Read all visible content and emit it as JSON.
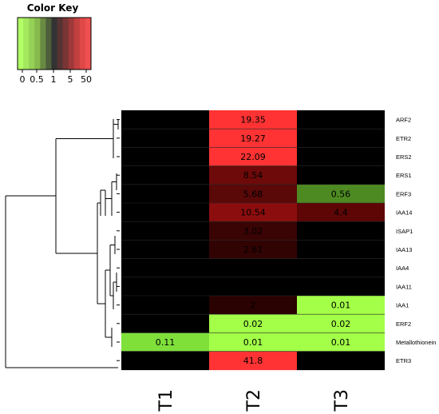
{
  "chart_data": {
    "type": "heatmap",
    "color_key": {
      "title": "Color Key",
      "tick_labels": [
        "0",
        "0.5",
        "1",
        "5",
        "50"
      ],
      "colors": [
        "#b3ff66",
        "#a4e85e",
        "#95d156",
        "#86ba4e",
        "#6a8a43",
        "#4e5f3b",
        "#333333",
        "#553333",
        "#7a3535",
        "#9e3a3a",
        "#c24040",
        "#e04848",
        "#f05050"
      ]
    },
    "columns": [
      "T1",
      "T2",
      "T3"
    ],
    "rows": [
      "ARF2",
      "ETR2",
      "ERS2",
      "ERS1",
      "ERF3",
      "IAA14",
      "ISAP1",
      "IAA13",
      "IAA4",
      "IAA11",
      "IAA1",
      "ERF2",
      "Metallothionein",
      "ETR3"
    ],
    "cells": [
      [
        {
          "color": "#000000",
          "label": ""
        },
        {
          "color": "#ff3333",
          "label": "19.35"
        },
        {
          "color": "#000000",
          "label": ""
        }
      ],
      [
        {
          "color": "#000000",
          "label": ""
        },
        {
          "color": "#ff3333",
          "label": "19.27"
        },
        {
          "color": "#000000",
          "label": ""
        }
      ],
      [
        {
          "color": "#000000",
          "label": ""
        },
        {
          "color": "#ff3333",
          "label": "22.09"
        },
        {
          "color": "#000000",
          "label": ""
        }
      ],
      [
        {
          "color": "#000000",
          "label": ""
        },
        {
          "color": "#6e0a0a",
          "label": "8.54"
        },
        {
          "color": "#000000",
          "label": ""
        }
      ],
      [
        {
          "color": "#000000",
          "label": ""
        },
        {
          "color": "#5a0808",
          "label": "5.68"
        },
        {
          "color": "#4e8a22",
          "label": "0.56"
        }
      ],
      [
        {
          "color": "#000000",
          "label": ""
        },
        {
          "color": "#8c0d0d",
          "label": "10.54"
        },
        {
          "color": "#5e0606",
          "label": "4.4"
        }
      ],
      [
        {
          "color": "#000000",
          "label": ""
        },
        {
          "color": "#3a0404",
          "label": "3.02"
        },
        {
          "color": "#000000",
          "label": ""
        }
      ],
      [
        {
          "color": "#000000",
          "label": ""
        },
        {
          "color": "#320303",
          "label": "2.61"
        },
        {
          "color": "#000000",
          "label": ""
        }
      ],
      [
        {
          "color": "#000000",
          "label": ""
        },
        {
          "color": "#000000",
          "label": ""
        },
        {
          "color": "#000000",
          "label": ""
        }
      ],
      [
        {
          "color": "#000000",
          "label": ""
        },
        {
          "color": "#000000",
          "label": ""
        },
        {
          "color": "#000000",
          "label": ""
        }
      ],
      [
        {
          "color": "#000000",
          "label": ""
        },
        {
          "color": "#2a0202",
          "label": "2"
        },
        {
          "color": "#a3ff47",
          "label": "0.01"
        }
      ],
      [
        {
          "color": "#000000",
          "label": ""
        },
        {
          "color": "#a3ff47",
          "label": "0.02"
        },
        {
          "color": "#a3ff47",
          "label": "0.02"
        }
      ],
      [
        {
          "color": "#7fe03a",
          "label": "0.11"
        },
        {
          "color": "#a3ff47",
          "label": "0.01"
        },
        {
          "color": "#a3ff47",
          "label": "0.01"
        }
      ],
      [
        {
          "color": "#000000",
          "label": ""
        },
        {
          "color": "#ff3333",
          "label": "41.8"
        },
        {
          "color": "#000000",
          "label": ""
        }
      ]
    ],
    "dendrogram": "row clustering tree shown at left",
    "grid": false
  }
}
